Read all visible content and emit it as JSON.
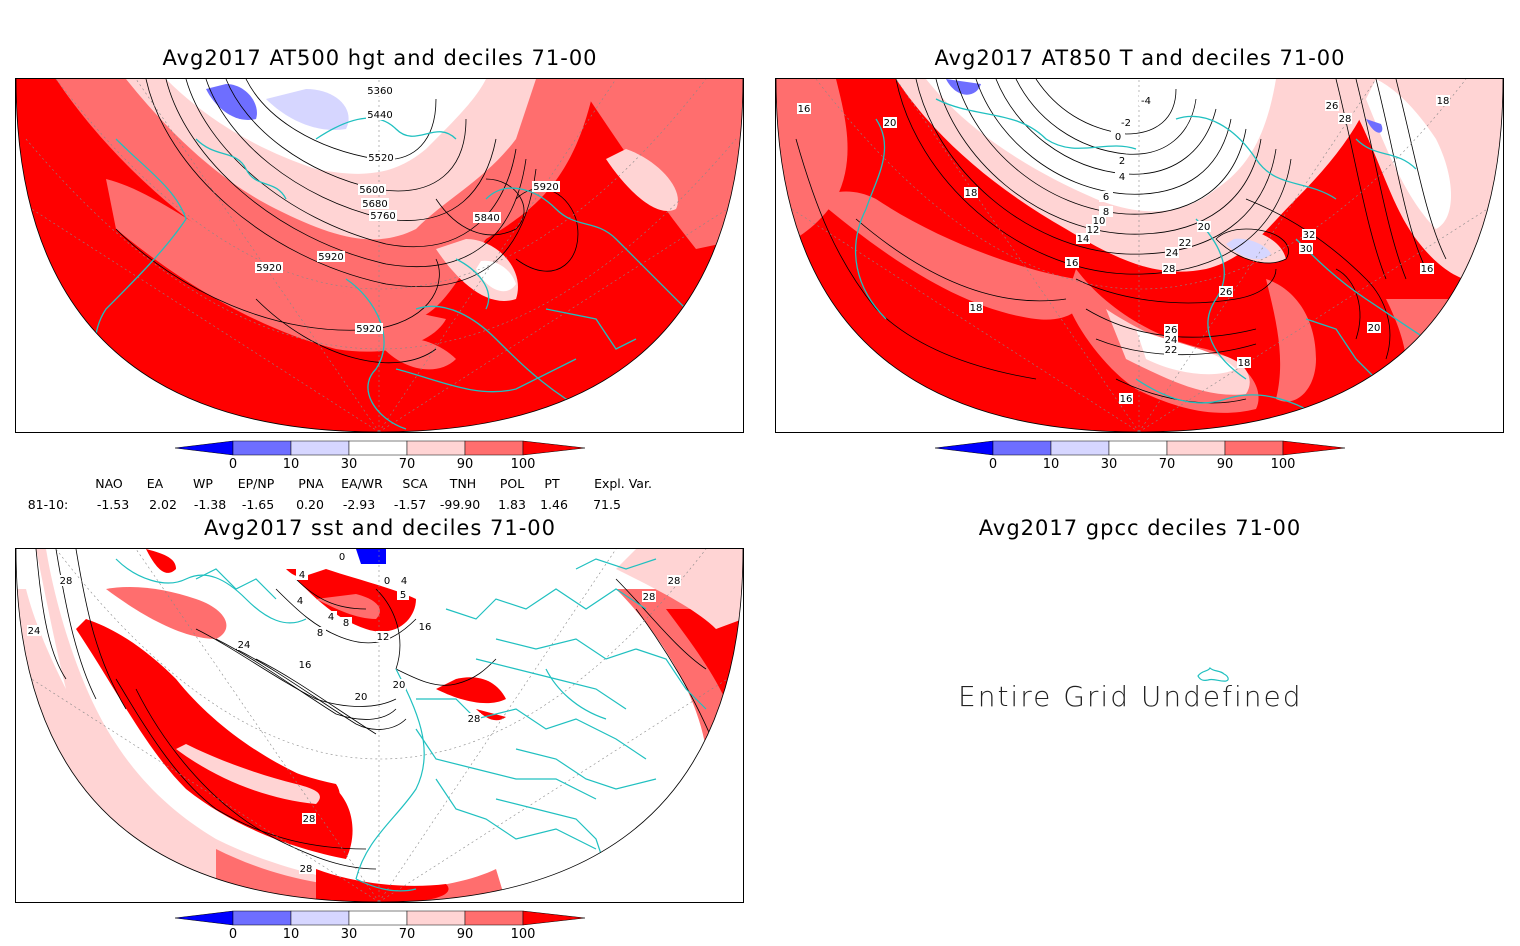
{
  "panels": [
    {
      "title": "Avg2017 AT500 hgt and deciles 71-00",
      "contour_labels": [
        "5360",
        "5440",
        "5520",
        "5600",
        "5680",
        "5760",
        "5840",
        "5920",
        "5920",
        "5920",
        "5920"
      ]
    },
    {
      "title": "Avg2017 AT850 T and deciles 71-00",
      "contour_labels": [
        "-4",
        "-2",
        "0",
        "2",
        "4",
        "6",
        "8",
        "10",
        "12",
        "14",
        "16",
        "16",
        "18",
        "18",
        "20",
        "20",
        "22",
        "24",
        "26",
        "28",
        "30",
        "32",
        "16",
        "18",
        "20",
        "26",
        "28",
        "22",
        "24",
        "26",
        "16",
        "18"
      ]
    },
    {
      "title": "Avg2017 sst and deciles 71-00",
      "contour_labels": [
        "24",
        "28",
        "4",
        "0",
        "4",
        "8",
        "8",
        "12",
        "16",
        "16",
        "20",
        "20",
        "24",
        "28",
        "28",
        "28",
        "28",
        "28",
        "4",
        "4",
        "0",
        "5"
      ]
    },
    {
      "title": "Avg2017 gpcc deciles 71-00",
      "message": "Entire Grid Undefined"
    }
  ],
  "colorbar": {
    "labels": [
      "0",
      "10",
      "30",
      "70",
      "90",
      "100"
    ],
    "colors": [
      "#0000ff",
      "#6e6eff",
      "#d6d6ff",
      "#ffffff",
      "#ffd4d4",
      "#ff6e6e",
      "#ff0000"
    ]
  },
  "indices": {
    "headers": [
      "NAO",
      "EA",
      "WP",
      "EP/NP",
      "PNA",
      "EA/WR",
      "SCA",
      "TNH",
      "POL",
      "PT",
      "Expl. Var."
    ],
    "row_label": "81-10:",
    "values": [
      "-1.53",
      "2.02",
      "-1.38",
      "-1.65",
      "0.20",
      "-2.93",
      "-1.57",
      "-99.90",
      "1.83",
      "1.46",
      "71.5"
    ]
  },
  "colors": {
    "coast": "#20c0c0",
    "deep": "#ff0000",
    "mid": "#ff7070",
    "light": "#ffd4d4",
    "blue": "#6e6eff",
    "lightblue": "#d6d6ff"
  }
}
